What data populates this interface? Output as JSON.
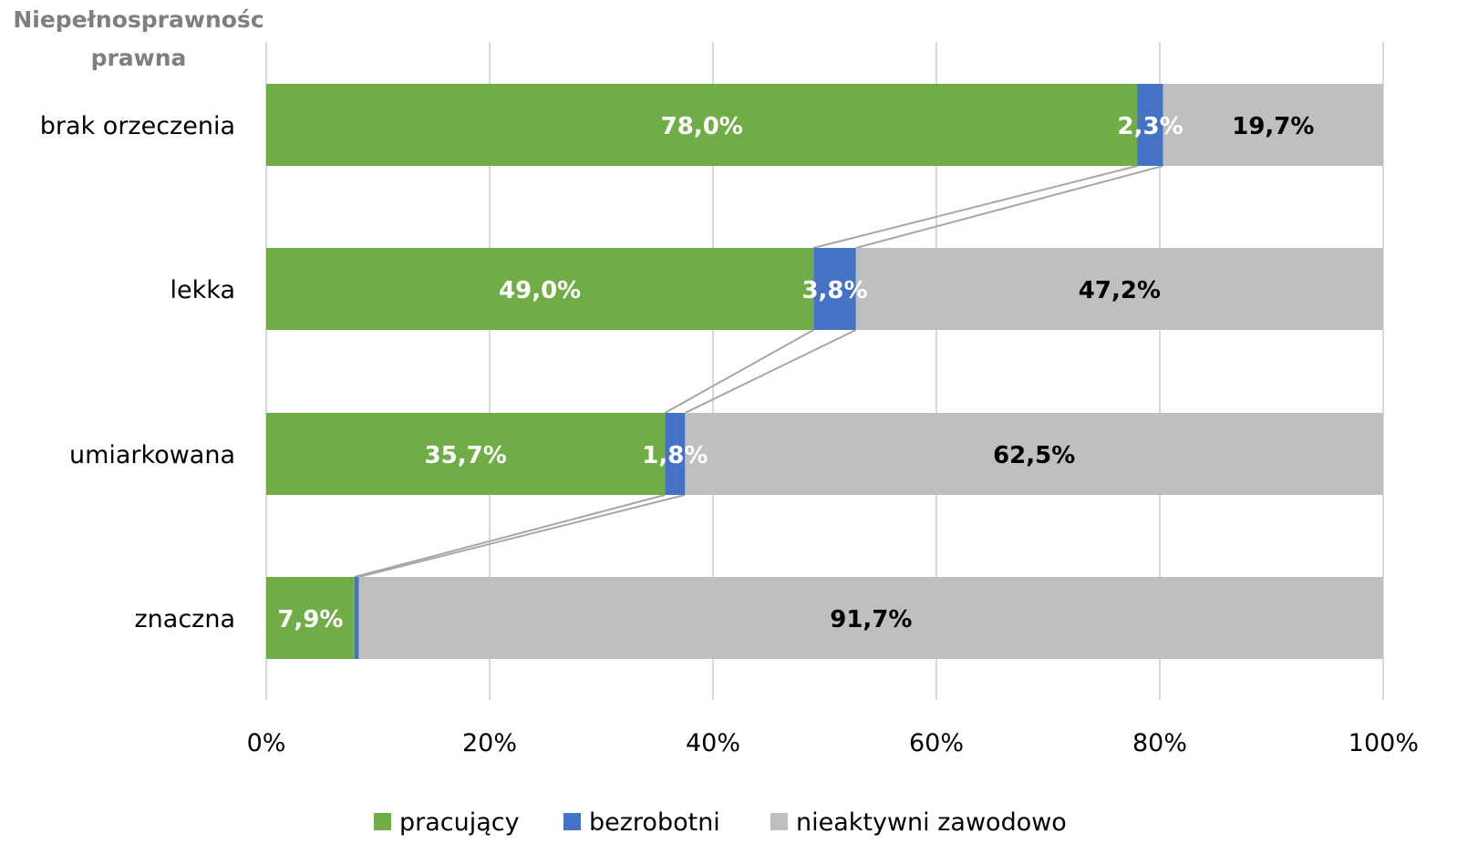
{
  "chart_data": {
    "type": "bar",
    "orientation": "horizontal",
    "stacked": "percent",
    "category_axis_title": [
      "Niepełnosprawnośc",
      "prawna"
    ],
    "categories": [
      "brak orzeczenia",
      "lekka",
      "umiarkowana",
      "znaczna"
    ],
    "series": [
      {
        "name": "pracujący",
        "color": "#70ad47",
        "label_color": "#ffffff",
        "values": [
          78.0,
          49.0,
          35.7,
          7.9
        ],
        "labels": [
          "78,0%",
          "49,0%",
          "35,7%",
          "7,9%"
        ]
      },
      {
        "name": "bezrobotni",
        "color": "#4472c4",
        "label_color": "#ffffff",
        "values": [
          2.3,
          3.8,
          1.8,
          0.4
        ],
        "labels": [
          "2,3%",
          "3,8%",
          "1,8%",
          ""
        ]
      },
      {
        "name": "nieaktywni zawodowo",
        "color": "#bfbfbf",
        "label_color": "#000000",
        "values": [
          19.7,
          47.2,
          62.5,
          91.7
        ],
        "labels": [
          "19,7%",
          "47,2%",
          "62,5%",
          "91,7%"
        ]
      }
    ],
    "x_ticks": [
      "0%",
      "20%",
      "40%",
      "60%",
      "80%",
      "100%"
    ],
    "xlim": [
      0,
      100
    ],
    "grid": true,
    "series_lines": true,
    "legend_position": "bottom"
  }
}
